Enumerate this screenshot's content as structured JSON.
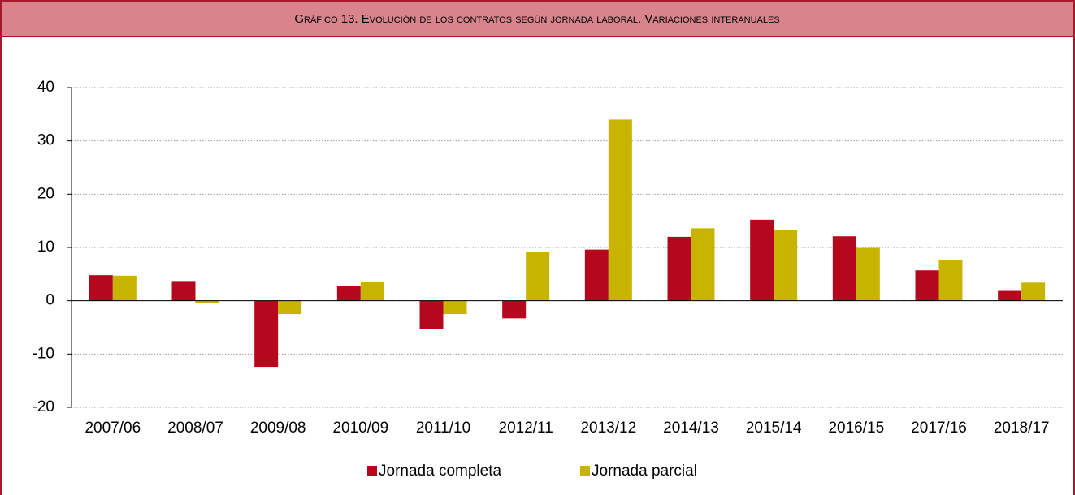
{
  "chart_data": {
    "type": "bar",
    "title": "Gráfico 13. Evolución de los contratos según jornada laboral. Variaciones interanuales",
    "categories": [
      "2007/06",
      "2008/07",
      "2009/08",
      "2010/09",
      "2011/10",
      "2012/11",
      "2013/12",
      "2014/13",
      "2015/14",
      "2016/15",
      "2017/16",
      "2018/17"
    ],
    "series": [
      {
        "name": "Jornada completa",
        "color": "#b5081e",
        "values": [
          4.8,
          3.7,
          -12.4,
          2.8,
          -5.3,
          -3.3,
          9.6,
          12.0,
          15.2,
          12.1,
          5.7,
          2.0
        ]
      },
      {
        "name": "Jornada parcial",
        "color": "#c8b400",
        "values": [
          4.7,
          -0.5,
          -2.5,
          3.5,
          -2.5,
          9.1,
          34.0,
          13.6,
          13.2,
          9.9,
          7.6,
          3.4
        ]
      }
    ],
    "ylim": [
      -20,
      40
    ],
    "yticks": [
      -20,
      -10,
      0,
      10,
      20,
      30,
      40
    ],
    "grid": true,
    "legend": "bottom"
  }
}
